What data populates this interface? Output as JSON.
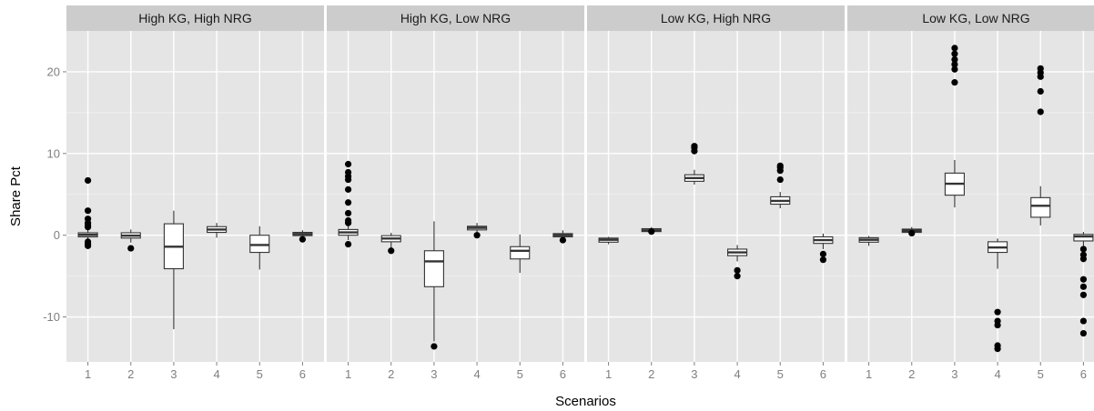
{
  "chart_data": {
    "type": "boxplot",
    "xlabel": "Scenarios",
    "ylabel": "Share Pct",
    "categories": [
      "1",
      "2",
      "3",
      "4",
      "5",
      "6"
    ],
    "ylim": [
      -15.5,
      25
    ],
    "yticks": [
      -10,
      0,
      10,
      20
    ],
    "ytick_labels": [
      "-10",
      "0",
      "10",
      "20"
    ],
    "grid": true,
    "panels": [
      {
        "title": "High KG, High NRG",
        "boxes": [
          {
            "q1": -0.2,
            "median": 0.05,
            "q3": 0.3,
            "wlo": -0.9,
            "whi": 0.9,
            "outliers": [
              -1.3,
              -1.1,
              -0.8,
              1.0,
              1.2,
              1.5,
              2.0,
              3.0,
              6.7
            ]
          },
          {
            "q1": -0.35,
            "median": -0.05,
            "q3": 0.3,
            "wlo": -0.9,
            "whi": 0.7,
            "outliers": [
              -1.6
            ]
          },
          {
            "q1": -4.1,
            "median": -1.4,
            "q3": 1.4,
            "wlo": -11.5,
            "whi": 3.0,
            "outliers": []
          },
          {
            "q1": 0.35,
            "median": 0.7,
            "q3": 1.05,
            "wlo": -0.3,
            "whi": 1.5,
            "outliers": []
          },
          {
            "q1": -2.1,
            "median": -1.2,
            "q3": 0.0,
            "wlo": -4.2,
            "whi": 1.1,
            "outliers": []
          },
          {
            "q1": -0.05,
            "median": 0.15,
            "q3": 0.35,
            "wlo": -0.3,
            "whi": 0.6,
            "outliers": [
              -0.5
            ]
          }
        ]
      },
      {
        "title": "High KG, Low NRG",
        "boxes": [
          {
            "q1": 0.0,
            "median": 0.35,
            "q3": 0.7,
            "wlo": -0.6,
            "whi": 1.3,
            "outliers": [
              -1.1,
              1.5,
              1.8,
              2.7,
              4.0,
              5.6,
              6.8,
              7.2,
              7.7,
              8.7
            ]
          },
          {
            "q1": -0.8,
            "median": -0.4,
            "q3": -0.05,
            "wlo": -1.7,
            "whi": 0.3,
            "outliers": [
              -1.9
            ]
          },
          {
            "q1": -6.3,
            "median": -3.2,
            "q3": -1.9,
            "wlo": -13.0,
            "whi": 1.7,
            "outliers": [
              -13.6
            ]
          },
          {
            "q1": 0.65,
            "median": 0.9,
            "q3": 1.1,
            "wlo": 0.3,
            "whi": 1.5,
            "outliers": [
              0.0
            ]
          },
          {
            "q1": -2.9,
            "median": -1.9,
            "q3": -1.4,
            "wlo": -4.6,
            "whi": 0.1,
            "outliers": []
          },
          {
            "q1": -0.2,
            "median": 0.0,
            "q3": 0.2,
            "wlo": -0.6,
            "whi": 0.6,
            "outliers": [
              -0.6
            ]
          }
        ]
      },
      {
        "title": "Low KG, High NRG",
        "boxes": [
          {
            "q1": -0.85,
            "median": -0.55,
            "q3": -0.35,
            "wlo": -1.1,
            "whi": -0.2,
            "outliers": []
          },
          {
            "q1": 0.45,
            "median": 0.6,
            "q3": 0.8,
            "wlo": 0.3,
            "whi": 1.0,
            "outliers": [
              0.45
            ]
          },
          {
            "q1": 6.6,
            "median": 7.0,
            "q3": 7.4,
            "wlo": 6.2,
            "whi": 8.0,
            "outliers": [
              10.3,
              10.7,
              10.9
            ]
          },
          {
            "q1": -2.5,
            "median": -2.1,
            "q3": -1.7,
            "wlo": -3.2,
            "whi": -1.2,
            "outliers": [
              -4.3,
              -5.0
            ]
          },
          {
            "q1": 3.8,
            "median": 4.2,
            "q3": 4.7,
            "wlo": 3.3,
            "whi": 5.3,
            "outliers": [
              6.8,
              7.9,
              8.3,
              8.5
            ]
          },
          {
            "q1": -1.0,
            "median": -0.6,
            "q3": -0.2,
            "wlo": -1.7,
            "whi": 0.2,
            "outliers": [
              -2.3,
              -3.0
            ]
          }
        ]
      },
      {
        "title": "Low KG, Low NRG",
        "boxes": [
          {
            "q1": -0.85,
            "median": -0.55,
            "q3": -0.3,
            "wlo": -1.3,
            "whi": -0.1,
            "outliers": []
          },
          {
            "q1": 0.35,
            "median": 0.55,
            "q3": 0.75,
            "wlo": 0.2,
            "whi": 1.0,
            "outliers": [
              0.25
            ]
          },
          {
            "q1": 4.9,
            "median": 6.3,
            "q3": 7.6,
            "wlo": 3.4,
            "whi": 9.2,
            "outliers": [
              18.7,
              20.3,
              20.9,
              21.5,
              22.2,
              22.9
            ]
          },
          {
            "q1": -2.1,
            "median": -1.5,
            "q3": -0.8,
            "wlo": -4.1,
            "whi": -0.4,
            "outliers": [
              -9.4,
              -10.5,
              -11.0,
              -13.5,
              -13.9
            ]
          },
          {
            "q1": 2.2,
            "median": 3.6,
            "q3": 4.6,
            "wlo": 1.2,
            "whi": 6.0,
            "outliers": [
              15.1,
              17.6,
              19.4,
              19.9,
              20.4
            ]
          },
          {
            "q1": -0.7,
            "median": -0.15,
            "q3": 0.1,
            "wlo": -1.3,
            "whi": 0.4,
            "outliers": [
              -1.7,
              -2.4,
              -2.9,
              -5.4,
              -6.3,
              -7.3,
              -10.5,
              -12.0
            ]
          }
        ]
      }
    ]
  }
}
